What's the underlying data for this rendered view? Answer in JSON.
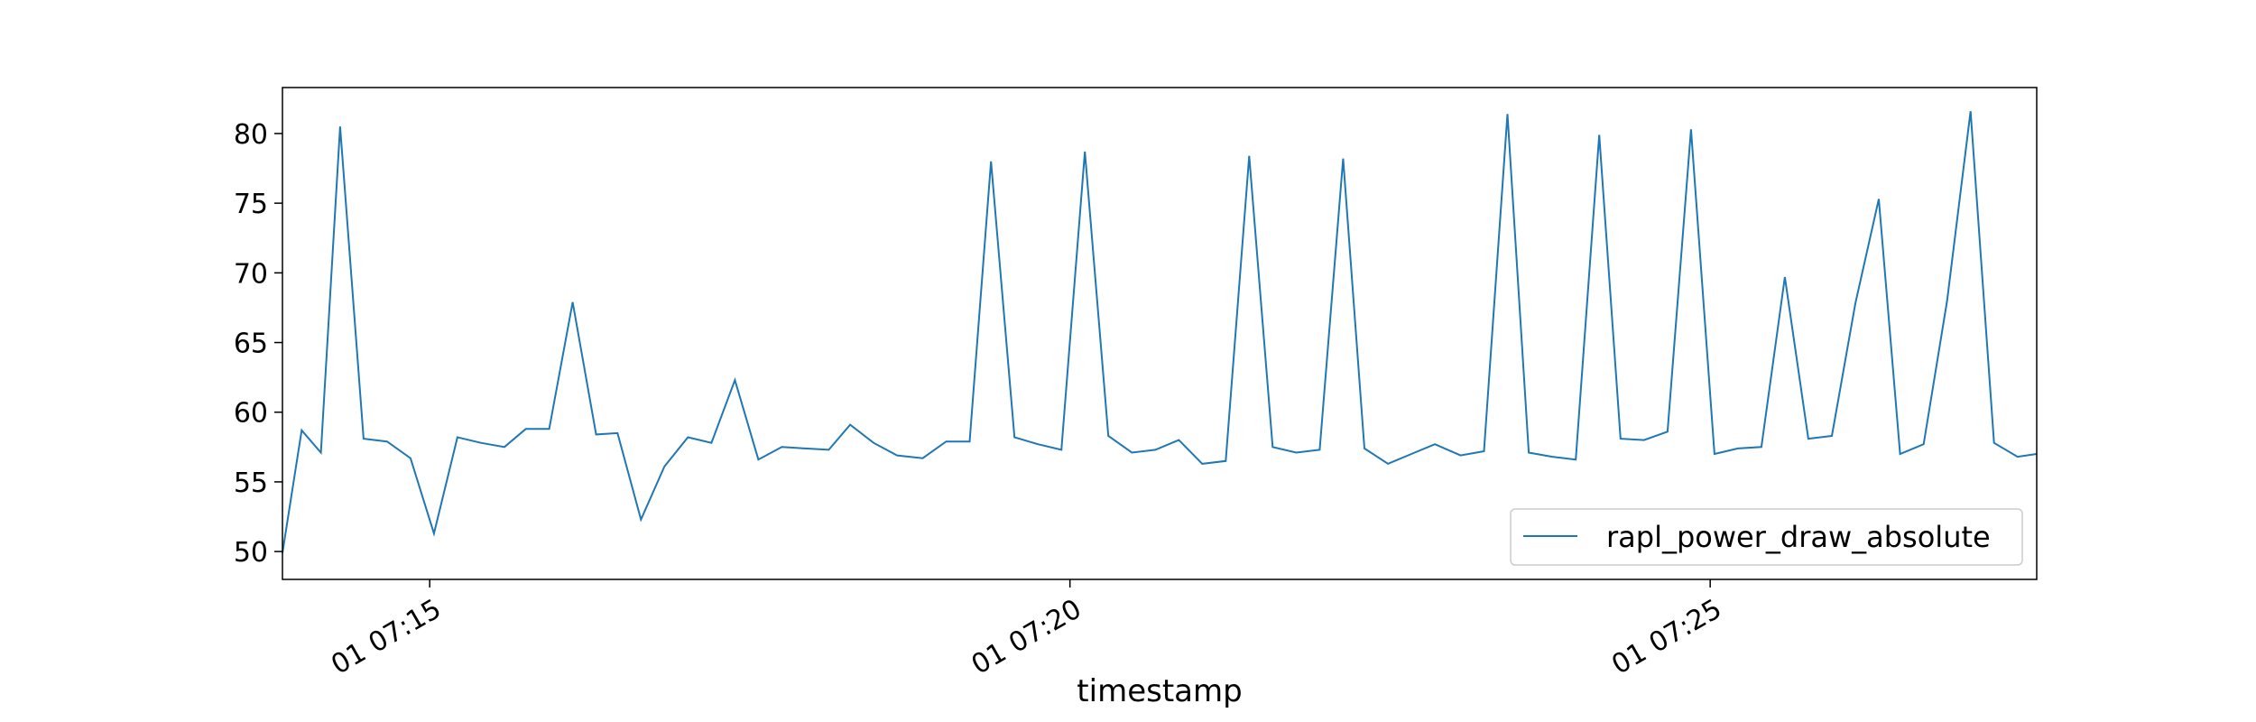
{
  "chart_data": {
    "type": "line",
    "title": "",
    "xlabel": "timestamp",
    "ylabel": "",
    "x_unit": "seconds after 07:13:51",
    "xlim": [
      0,
      822
    ],
    "ylim": [
      48,
      83.3
    ],
    "grid": false,
    "legend_position": "lower-right",
    "y_ticks": [
      50,
      55,
      60,
      65,
      70,
      75,
      80
    ],
    "x_ticks": [
      {
        "value": 69,
        "label": "01 07:15"
      },
      {
        "value": 369,
        "label": "01 07:20"
      },
      {
        "value": 669,
        "label": "01 07:25"
      }
    ],
    "series": [
      {
        "name": "rapl_power_draw_absolute",
        "color": "#1f77b4",
        "x": [
          0,
          9,
          18,
          27,
          38,
          49,
          60,
          71,
          82,
          93,
          104,
          114,
          125,
          136,
          147,
          157,
          168,
          179,
          190,
          201,
          212,
          223,
          234,
          245,
          256,
          266,
          277,
          288,
          300,
          311,
          322,
          332,
          343,
          354,
          365,
          376,
          387,
          398,
          409,
          420,
          431,
          442,
          453,
          464,
          475,
          486,
          497,
          507,
          518,
          529,
          540,
          552,
          563,
          574,
          584,
          595,
          606,
          617,
          627,
          638,
          649,
          660,
          671,
          682,
          693,
          704,
          715,
          726,
          737,
          748,
          758,
          769,
          780,
          791,
          802,
          813,
          822
        ],
        "y": [
          49.9,
          58.7,
          57.1,
          80.5,
          58.1,
          57.9,
          56.7,
          51.3,
          58.2,
          57.8,
          57.5,
          58.8,
          58.8,
          67.9,
          58.4,
          58.5,
          52.3,
          56.1,
          58.2,
          57.8,
          62.3,
          56.6,
          57.5,
          57.4,
          57.3,
          59.1,
          57.8,
          56.9,
          56.7,
          57.9,
          57.9,
          78.0,
          58.2,
          57.7,
          57.3,
          78.7,
          58.3,
          57.1,
          57.3,
          58.0,
          56.3,
          56.5,
          78.4,
          57.5,
          57.1,
          57.3,
          78.2,
          57.4,
          56.3,
          57.0,
          57.7,
          56.9,
          57.2,
          81.4,
          57.1,
          56.8,
          56.6,
          79.9,
          58.1,
          58.0,
          58.6,
          80.3,
          57.0,
          57.4,
          57.5,
          69.7,
          58.1,
          58.3,
          67.8,
          75.3,
          57.0,
          57.7,
          68.0,
          81.6,
          57.8,
          56.8,
          57.0
        ]
      }
    ]
  }
}
